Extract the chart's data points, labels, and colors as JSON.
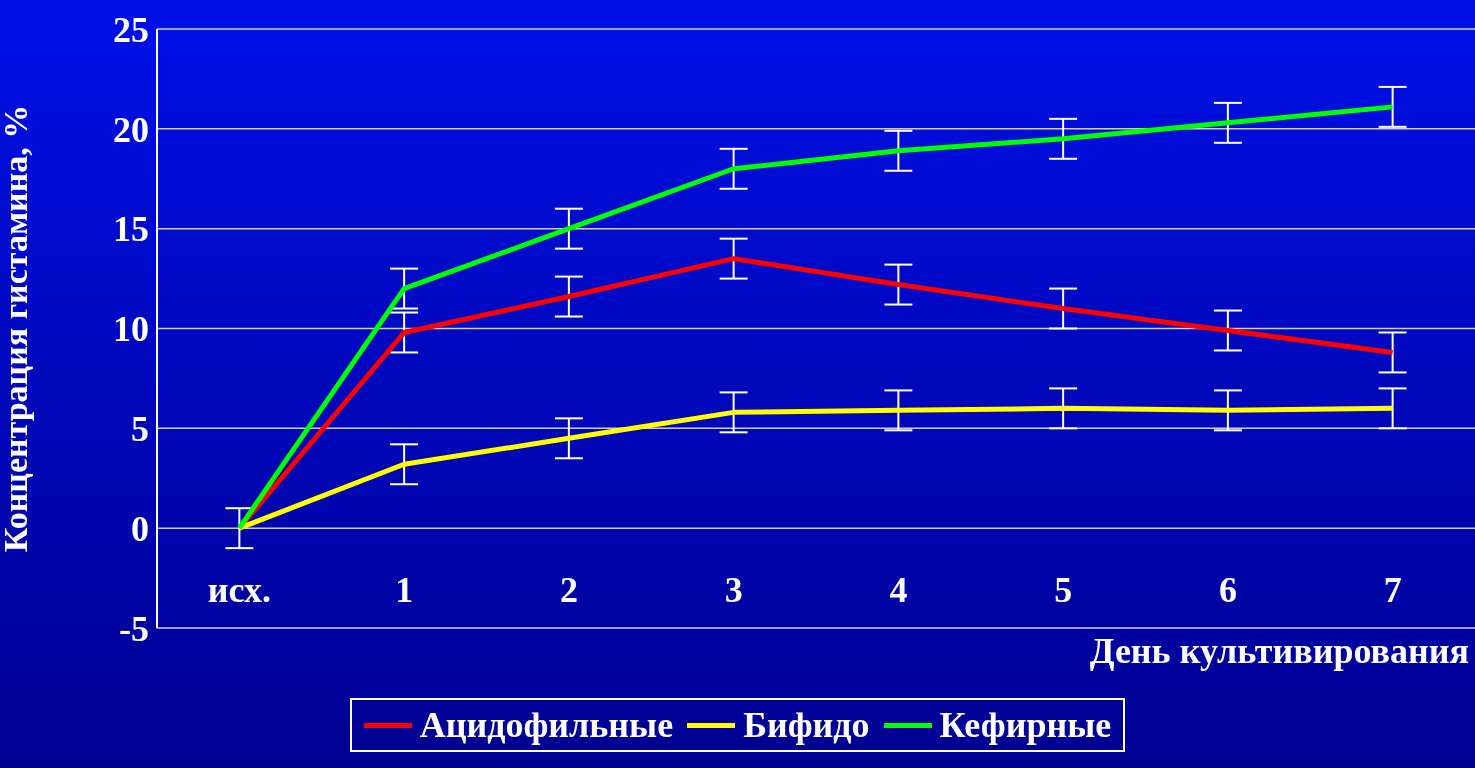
{
  "chart_data": {
    "type": "line",
    "xlabel": "День культивирования",
    "ylabel": "Концентрация гистамина, %",
    "categories": [
      "исх.",
      "1",
      "2",
      "3",
      "4",
      "5",
      "6",
      "7"
    ],
    "series": [
      {
        "name": "Ацидофильные",
        "color": "#ff0000",
        "values": [
          0,
          9.8,
          11.6,
          13.5,
          12.2,
          11.0,
          9.9,
          8.8
        ],
        "errors": [
          1,
          1,
          1,
          1,
          1,
          1,
          1,
          1
        ]
      },
      {
        "name": "Бифидо",
        "color": "#ffff00",
        "values": [
          0,
          3.2,
          4.5,
          5.8,
          5.9,
          6.0,
          5.9,
          6.0
        ],
        "errors": [
          null,
          1,
          1,
          1,
          1,
          1,
          1,
          1
        ]
      },
      {
        "name": "Кефирные",
        "color": "#00ff00",
        "values": [
          0,
          12,
          15,
          18,
          18.9,
          19.5,
          20.3,
          21.1
        ],
        "errors": [
          null,
          1,
          1,
          1,
          1,
          1,
          1,
          1
        ]
      }
    ],
    "ylim": [
      -5,
      25
    ],
    "yticks": [
      -5,
      0,
      5,
      10,
      15,
      20,
      25
    ],
    "grid": "y",
    "legend": "bottom",
    "marker": "none",
    "line_style": "solid"
  }
}
